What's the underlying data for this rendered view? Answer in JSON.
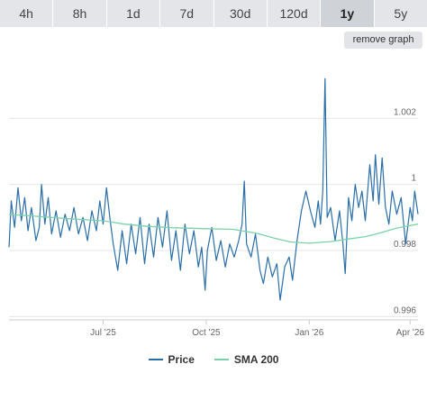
{
  "tabs": [
    {
      "label": "4h"
    },
    {
      "label": "8h"
    },
    {
      "label": "1d"
    },
    {
      "label": "7d"
    },
    {
      "label": "30d"
    },
    {
      "label": "120d"
    },
    {
      "label": "1y",
      "active": true
    },
    {
      "label": "5y"
    }
  ],
  "remove_graph_label": "remove graph",
  "colors": {
    "price": "#2a6ea8",
    "sma": "#7ad3a6",
    "grid": "#e6e6e6"
  },
  "chart_data": {
    "type": "line",
    "x_start": "2025-04-08",
    "x_end": "2026-04-08",
    "x_ticks": [
      {
        "date": "2025-07-01",
        "label": "Jul '25"
      },
      {
        "date": "2025-10-01",
        "label": "Oct '25"
      },
      {
        "date": "2026-01-01",
        "label": "Jan '26"
      },
      {
        "date": "2026-04-01",
        "label": "Apr '26"
      }
    ],
    "y_ticks": [
      {
        "value": 0.996,
        "label": "0.996"
      },
      {
        "value": 0.998,
        "label": "0.998"
      },
      {
        "value": 1,
        "label": "1"
      },
      {
        "value": 1.002,
        "label": "1.002"
      }
    ],
    "ylim": [
      0.9959,
      1.004
    ],
    "grid": true,
    "legend_position": "bottom",
    "series": [
      {
        "name": "Price",
        "points": [
          [
            "2025-04-08",
            0.9981
          ],
          [
            "2025-04-10",
            0.9995
          ],
          [
            "2025-04-13",
            0.9987
          ],
          [
            "2025-04-16",
            0.9999
          ],
          [
            "2025-04-19",
            0.9989
          ],
          [
            "2025-04-22",
            0.9996
          ],
          [
            "2025-04-25",
            0.9986
          ],
          [
            "2025-04-28",
            0.9993
          ],
          [
            "2025-05-02",
            0.9983
          ],
          [
            "2025-05-05",
            0.9987
          ],
          [
            "2025-05-07",
            1.0
          ],
          [
            "2025-05-10",
            0.9988
          ],
          [
            "2025-05-13",
            0.9996
          ],
          [
            "2025-05-16",
            0.9985
          ],
          [
            "2025-05-20",
            0.9992
          ],
          [
            "2025-05-24",
            0.9984
          ],
          [
            "2025-05-28",
            0.9991
          ],
          [
            "2025-06-01",
            0.9986
          ],
          [
            "2025-06-05",
            0.9993
          ],
          [
            "2025-06-09",
            0.9985
          ],
          [
            "2025-06-13",
            0.999
          ],
          [
            "2025-06-17",
            0.9983
          ],
          [
            "2025-06-21",
            0.9992
          ],
          [
            "2025-06-25",
            0.9986
          ],
          [
            "2025-06-28",
            0.9995
          ],
          [
            "2025-07-01",
            0.9988
          ],
          [
            "2025-07-04",
            0.9999
          ],
          [
            "2025-07-07",
            0.999
          ],
          [
            "2025-07-10",
            0.9982
          ],
          [
            "2025-07-14",
            0.9974
          ],
          [
            "2025-07-18",
            0.9986
          ],
          [
            "2025-07-22",
            0.9976
          ],
          [
            "2025-07-26",
            0.9988
          ],
          [
            "2025-07-30",
            0.9979
          ],
          [
            "2025-08-03",
            0.999
          ],
          [
            "2025-08-07",
            0.9976
          ],
          [
            "2025-08-11",
            0.9988
          ],
          [
            "2025-08-15",
            0.9978
          ],
          [
            "2025-08-19",
            0.999
          ],
          [
            "2025-08-23",
            0.9981
          ],
          [
            "2025-08-27",
            0.9992
          ],
          [
            "2025-08-31",
            0.9977
          ],
          [
            "2025-09-04",
            0.9986
          ],
          [
            "2025-09-08",
            0.9974
          ],
          [
            "2025-09-12",
            0.9988
          ],
          [
            "2025-09-16",
            0.9979
          ],
          [
            "2025-09-20",
            0.9986
          ],
          [
            "2025-09-24",
            0.9975
          ],
          [
            "2025-09-27",
            0.9981
          ],
          [
            "2025-09-30",
            0.9968
          ],
          [
            "2025-10-02",
            0.998
          ],
          [
            "2025-10-06",
            0.9987
          ],
          [
            "2025-10-10",
            0.9977
          ],
          [
            "2025-10-14",
            0.9983
          ],
          [
            "2025-10-18",
            0.9975
          ],
          [
            "2025-10-22",
            0.9982
          ],
          [
            "2025-10-26",
            0.9978
          ],
          [
            "2025-10-30",
            0.9983
          ],
          [
            "2025-11-02",
            0.9988
          ],
          [
            "2025-11-04",
            1.0001
          ],
          [
            "2025-11-06",
            0.9982
          ],
          [
            "2025-11-10",
            0.9978
          ],
          [
            "2025-11-14",
            0.9985
          ],
          [
            "2025-11-18",
            0.9974
          ],
          [
            "2025-11-21",
            0.997
          ],
          [
            "2025-11-25",
            0.9978
          ],
          [
            "2025-11-29",
            0.9972
          ],
          [
            "2025-12-03",
            0.9976
          ],
          [
            "2025-12-06",
            0.9965
          ],
          [
            "2025-12-10",
            0.9975
          ],
          [
            "2025-12-14",
            0.9978
          ],
          [
            "2025-12-17",
            0.9971
          ],
          [
            "2025-12-21",
            0.9983
          ],
          [
            "2025-12-25",
            0.9992
          ],
          [
            "2025-12-29",
            0.9998
          ],
          [
            "2026-01-02",
            0.9992
          ],
          [
            "2026-01-06",
            0.9987
          ],
          [
            "2026-01-09",
            0.9995
          ],
          [
            "2026-01-11",
            0.9988
          ],
          [
            "2026-01-13",
            0.9998
          ],
          [
            "2026-01-15",
            1.0032
          ],
          [
            "2026-01-17",
            0.999
          ],
          [
            "2026-01-20",
            0.9993
          ],
          [
            "2026-01-24",
            0.9983
          ],
          [
            "2026-01-28",
            0.9992
          ],
          [
            "2026-01-31",
            0.9982
          ],
          [
            "2026-02-02",
            0.9973
          ],
          [
            "2026-02-05",
            0.9996
          ],
          [
            "2026-02-08",
            0.9989
          ],
          [
            "2026-02-11",
            1.0
          ],
          [
            "2026-02-14",
            0.9993
          ],
          [
            "2026-02-17",
            0.9998
          ],
          [
            "2026-02-20",
            0.9989
          ],
          [
            "2026-02-24",
            1.0006
          ],
          [
            "2026-02-27",
            0.9995
          ],
          [
            "2026-03-01",
            1.0009
          ],
          [
            "2026-03-04",
            0.9994
          ],
          [
            "2026-03-07",
            1.0008
          ],
          [
            "2026-03-10",
            0.9993
          ],
          [
            "2026-03-13",
            0.9988
          ],
          [
            "2026-03-16",
            0.9998
          ],
          [
            "2026-03-20",
            0.9991
          ],
          [
            "2026-03-24",
            0.9996
          ],
          [
            "2026-03-28",
            0.9982
          ],
          [
            "2026-04-01",
            0.9993
          ],
          [
            "2026-04-03",
            0.9989
          ],
          [
            "2026-04-05",
            0.9998
          ],
          [
            "2026-04-08",
            0.9991
          ]
        ]
      },
      {
        "name": "SMA 200",
        "points": [
          [
            "2025-04-08",
            0.99909
          ],
          [
            "2025-05-01",
            0.99904
          ],
          [
            "2025-06-01",
            0.99896
          ],
          [
            "2025-07-01",
            0.9989
          ],
          [
            "2025-07-20",
            0.9988
          ],
          [
            "2025-08-10",
            0.99873
          ],
          [
            "2025-09-01",
            0.99869
          ],
          [
            "2025-10-01",
            0.99866
          ],
          [
            "2025-10-25",
            0.99864
          ],
          [
            "2025-11-15",
            0.99852
          ],
          [
            "2025-12-01",
            0.99837
          ],
          [
            "2025-12-15",
            0.99826
          ],
          [
            "2026-01-01",
            0.99822
          ],
          [
            "2026-01-20",
            0.99827
          ],
          [
            "2026-02-05",
            0.99835
          ],
          [
            "2026-02-20",
            0.99842
          ],
          [
            "2026-03-05",
            0.99853
          ],
          [
            "2026-03-20",
            0.99868
          ],
          [
            "2026-04-08",
            0.9988
          ]
        ]
      }
    ]
  }
}
